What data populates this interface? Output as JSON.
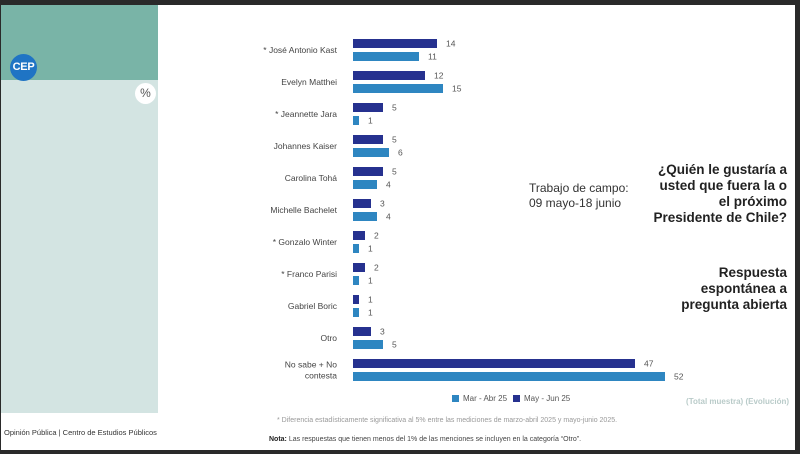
{
  "brand": {
    "logo_text": "CEP",
    "unit_badge": "%"
  },
  "sidebar": {
    "question": "¿Quién le gustaría a usted que fuera la o el próximo Presidente de Chile?",
    "subtitle": "Respuesta espontánea a pregunta abierta",
    "sample_note": "(Total muestra) (Evolución)",
    "source": "Opinión Pública | Centro de Estudios Públicos"
  },
  "fieldwork": {
    "line1": "Trabajo de campo:",
    "line2": "09 mayo-18 junio"
  },
  "footnote": "* Diferencia estadísticamente significativa al 5% entre las mediciones de marzo-abril 2025 y mayo-junio 2025.",
  "note": {
    "label": "Nota:",
    "text": " Las respuestas que tienen menos del 1% de las menciones se incluyen en la categoría “Otro”."
  },
  "colors": {
    "may_jun": "#26318f",
    "mar_abr": "#2e86c1",
    "sidebar_top": "#79b4a7",
    "sidebar": "#d3e4e2",
    "logo": "#1f74c4"
  },
  "chart_data": {
    "type": "bar",
    "orientation": "horizontal",
    "title": "¿Quién le gustaría a usted que fuera la o el próximo Presidente de Chile?",
    "xlabel": "",
    "ylabel": "",
    "unit": "%",
    "xlim": [
      0,
      52
    ],
    "grid": false,
    "legend_position": "bottom",
    "categories": [
      "* José Antonio Kast",
      "Evelyn Matthei",
      "* Jeannette Jara",
      "Johannes Kaiser",
      "Carolina Tohá",
      "Michelle Bachelet",
      "* Gonzalo Winter",
      "* Franco Parisi",
      "Gabriel Boric",
      "Otro",
      "No sabe + No contesta"
    ],
    "series": [
      {
        "name": "May - Jun 25",
        "color": "#26318f",
        "values": [
          14,
          12,
          5,
          5,
          5,
          3,
          2,
          2,
          1,
          3,
          47
        ]
      },
      {
        "name": "Mar - Abr 25",
        "color": "#2e86c1",
        "values": [
          11,
          15,
          1,
          6,
          4,
          4,
          1,
          1,
          1,
          5,
          52
        ]
      }
    ],
    "legend": [
      "Mar - Abr 25",
      "May - Jun 25"
    ]
  }
}
